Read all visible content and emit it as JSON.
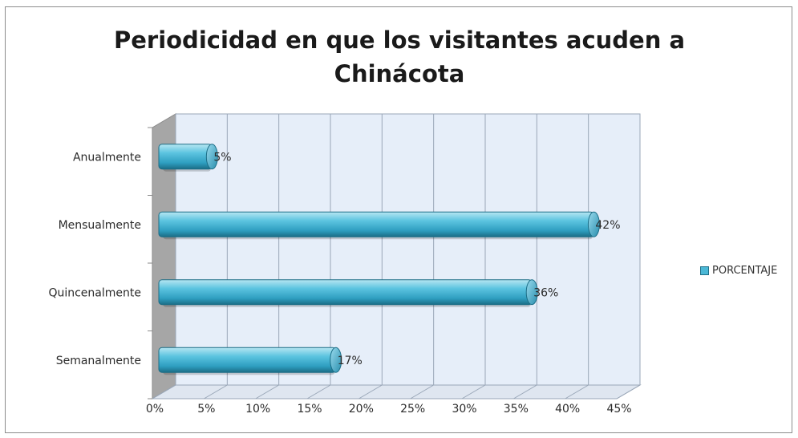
{
  "chart_data": {
    "type": "bar",
    "orientation": "horizontal",
    "title": "Periodicidad en que los visitantes acuden a Chinácota",
    "title_lines": [
      "Periodicidad en que los visitantes acuden a",
      "Chinácota"
    ],
    "categories": [
      "Anualmente",
      "Mensualmente",
      "Quincenalmente",
      "Semanalmente"
    ],
    "series": [
      {
        "name": "PORCENTAJE",
        "values": [
          5,
          42,
          36,
          17
        ],
        "labels": [
          "5%",
          "42%",
          "36%",
          "17%"
        ]
      }
    ],
    "xlim": [
      0,
      45
    ],
    "ticks": [
      0,
      5,
      10,
      15,
      20,
      25,
      30,
      35,
      40,
      45
    ],
    "tick_labels": [
      "0%",
      "5%",
      "10%",
      "15%",
      "20%",
      "25%",
      "30%",
      "35%",
      "40%",
      "45%"
    ],
    "grid": true,
    "legend_position": "right",
    "bar_color": "#4bb8d6",
    "plot_bg_color": "#e6eef9"
  }
}
